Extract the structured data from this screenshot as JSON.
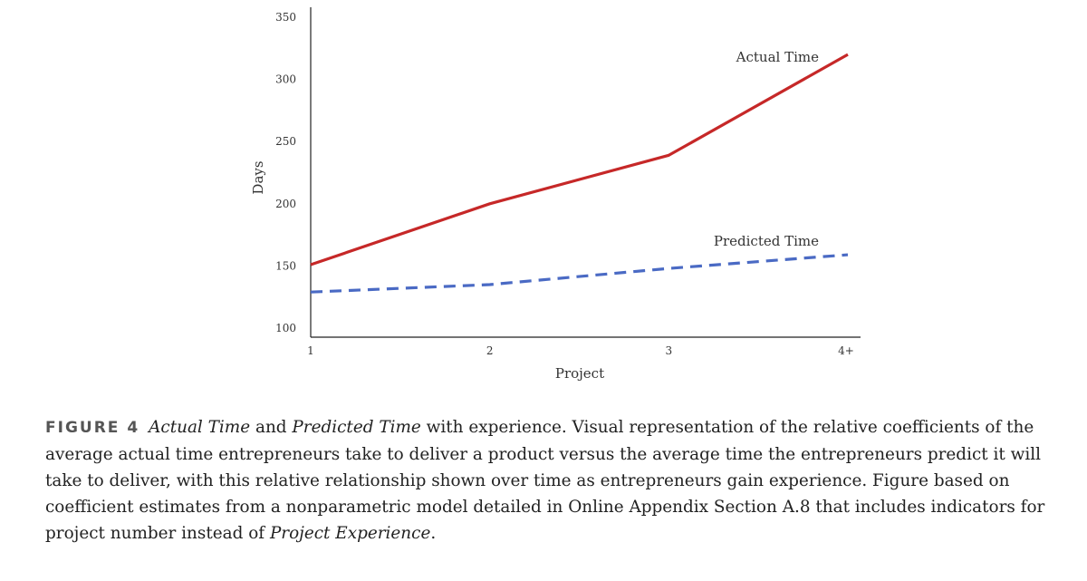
{
  "chart_data": {
    "type": "line",
    "title": "",
    "xlabel": "Project",
    "ylabel": "Days",
    "categories": [
      "1",
      "2",
      "3",
      "4+"
    ],
    "ylim": [
      100,
      350
    ],
    "yticks": [
      100,
      150,
      200,
      250,
      300,
      350
    ],
    "grid": false,
    "legend": "inline labels at series ends",
    "series": [
      {
        "name": "Actual Time",
        "values": [
          151,
          200,
          239,
          320
        ],
        "color": "#c62828",
        "style": "solid"
      },
      {
        "name": "Predicted Time",
        "values": [
          129,
          135,
          148,
          159
        ],
        "color": "#4a6ac4",
        "style": "dashed"
      }
    ]
  },
  "caption": {
    "label": "FIGURE 4",
    "seg1": "Actual Time",
    "seg2": " and ",
    "seg3": "Predicted Time",
    "seg4": " with experience. Visual representation of the relative coefficients of the average actual time entrepreneurs take to deliver a product versus the average time the entrepreneurs predict it will take to deliver, with this relative relationship shown over time as entrepreneurs gain experience. Figure based on coefficient estimates from a nonparametric model detailed in Online Appendix Section A.8 that includes indicators for project number instead of ",
    "seg5": "Project Experience",
    "seg6": "."
  }
}
